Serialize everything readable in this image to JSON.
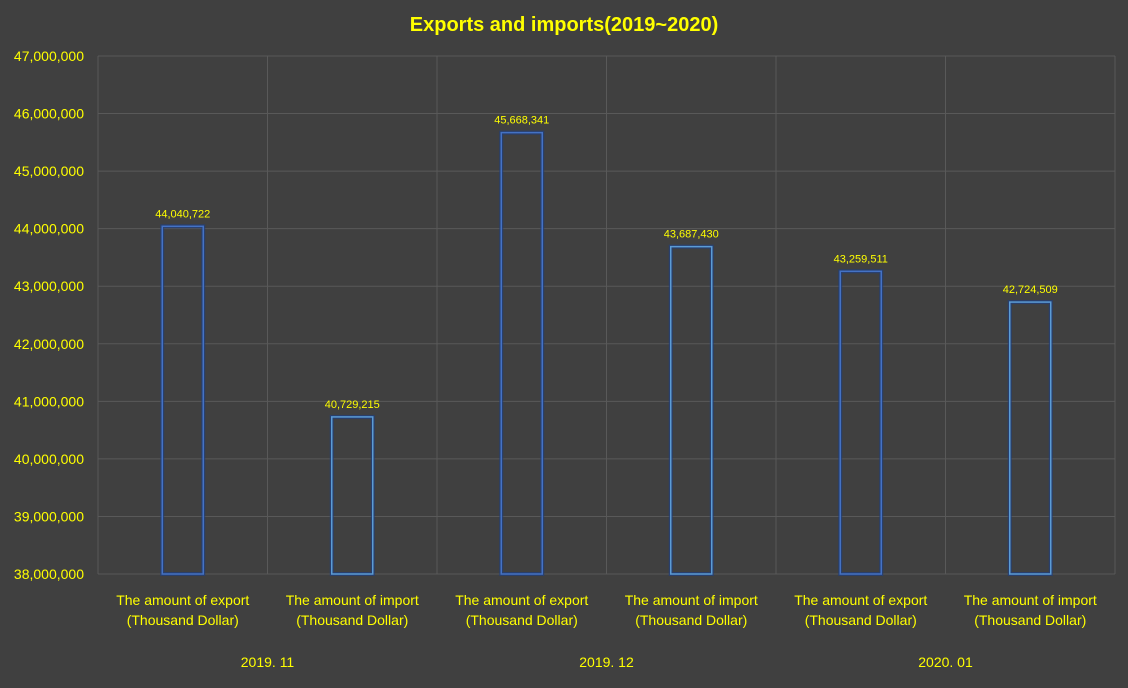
{
  "chart_data": {
    "type": "bar",
    "title": "Exports and imports(2019~2020)",
    "xlabel": "",
    "ylabel": "",
    "ylim": [
      38000000,
      47000000
    ],
    "yticks": [
      "38,000,000",
      "39,000,000",
      "40,000,000",
      "41,000,000",
      "42,000,000",
      "43,000,000",
      "44,000,000",
      "45,000,000",
      "46,000,000",
      "47,000,000"
    ],
    "grid": true,
    "legend": "none",
    "categories": [
      "The amount of export (Thousand Dollar)",
      "The amount of import (Thousand Dollar)",
      "The amount of export (Thousand Dollar)",
      "The amount of import (Thousand Dollar)",
      "The amount of export (Thousand Dollar)",
      "The amount of import (Thousand Dollar)"
    ],
    "category_lines": [
      [
        "The amount of export",
        "(Thousand Dollar)"
      ],
      [
        "The amount of import",
        "(Thousand Dollar)"
      ],
      [
        "The amount of export",
        "(Thousand Dollar)"
      ],
      [
        "The amount of import",
        "(Thousand Dollar)"
      ],
      [
        "The amount of export",
        "(Thousand Dollar)"
      ],
      [
        "The amount of import",
        "(Thousand Dollar)"
      ]
    ],
    "groups": [
      "2019. 11",
      "2019. 12",
      "2020. 01"
    ],
    "values": [
      44040722,
      40729215,
      45668341,
      43687430,
      43259511,
      42724509
    ],
    "data_labels": [
      "44,040,722",
      "40,729,215",
      "45,668,341",
      "43,687,430",
      "43,259,511",
      "42,724,509"
    ],
    "colors": {
      "background": "#404040",
      "text": "#ffff00",
      "grid": "#595959",
      "export_border": "#4472c4",
      "import_border": "#5b9bd5",
      "bar_glow": "#1f3f7f"
    }
  }
}
